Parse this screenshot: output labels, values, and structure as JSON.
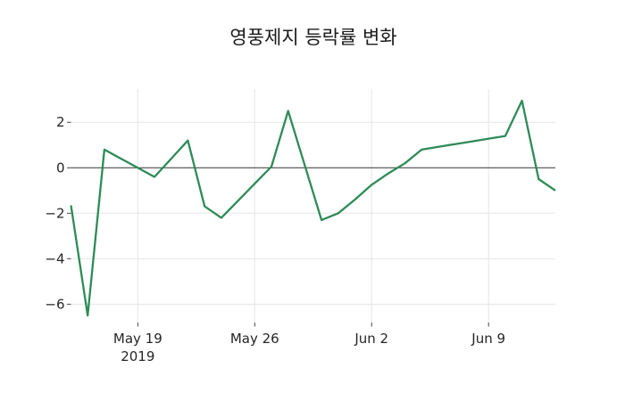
{
  "chart_data": {
    "type": "line",
    "title": "영풍제지 등락률 변화",
    "series_name": "등락률",
    "xlabel": "",
    "ylabel": "",
    "x": [
      "2019-05-15",
      "2019-05-16",
      "2019-05-17",
      "2019-05-18",
      "2019-05-19",
      "2019-05-20",
      "2019-05-21",
      "2019-05-22",
      "2019-05-23",
      "2019-05-24",
      "2019-05-25",
      "2019-05-26",
      "2019-05-27",
      "2019-05-28",
      "2019-05-29",
      "2019-05-30",
      "2019-05-31",
      "2019-06-01",
      "2019-06-02",
      "2019-06-03",
      "2019-06-04",
      "2019-06-05",
      "2019-06-06",
      "2019-06-07",
      "2019-06-08",
      "2019-06-09",
      "2019-06-10",
      "2019-06-11",
      "2019-06-12",
      "2019-06-13"
    ],
    "values": [
      -1.65,
      -6.5,
      0.8,
      0.4,
      0.0,
      -0.4,
      0.4,
      1.2,
      -1.7,
      -2.2,
      -1.45,
      -0.7,
      0.05,
      2.5,
      0.1,
      -2.3,
      -2.0,
      -1.4,
      -0.75,
      -0.25,
      0.2,
      0.8,
      0.92,
      1.04,
      1.16,
      1.28,
      1.4,
      2.95,
      -0.5,
      -1.0
    ],
    "y_ticks": {
      "values": [
        2,
        0,
        -2,
        -4,
        -6
      ],
      "labels": [
        "2",
        "0",
        "−2",
        "−4",
        "−6"
      ]
    },
    "x_ticks": [
      {
        "i": 4,
        "label": "May 19",
        "sublabel": "2019"
      },
      {
        "i": 11,
        "label": "May 26",
        "sublabel": ""
      },
      {
        "i": 18,
        "label": "Jun 2",
        "sublabel": ""
      },
      {
        "i": 25,
        "label": "Jun 9",
        "sublabel": ""
      }
    ],
    "ylim": [
      -6.81,
      3.46
    ],
    "grid": true,
    "legend": "none",
    "zero_line": 0,
    "colors": {
      "line": "#2e8b57",
      "zero_line": "#333333",
      "grid": "#e5e5e5",
      "tick": "#333333",
      "text": "#262626",
      "background": "#ffffff"
    }
  }
}
